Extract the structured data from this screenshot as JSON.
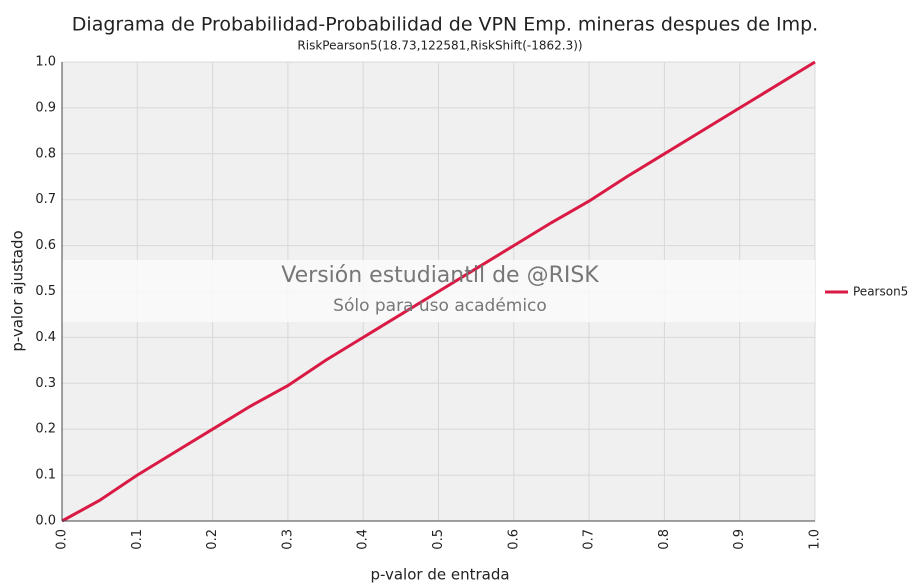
{
  "chart_data": {
    "type": "line",
    "title": "Diagrama de Probabilidad-Probabilidad de VPN Emp. mineras despues de Imp.",
    "subtitle": "RiskPearson5(18.73,122581,RiskShift(-1862.3))",
    "x_label": "p-valor de entrada",
    "y_label": "p-valor ajustado",
    "annotations": [
      "Versión estudiantil de @RISK",
      "Sólo para uso académico"
    ],
    "x": [
      0,
      0.05,
      0.1,
      0.15,
      0.2,
      0.25,
      0.3,
      0.35,
      0.4,
      0.45,
      0.5,
      0.55,
      0.6,
      0.65,
      0.7,
      0.75,
      0.8,
      0.85,
      0.9,
      0.95,
      1
    ],
    "series": [
      {
        "name": "Pearson5",
        "color": "#d91a44",
        "values": [
          0,
          0.045,
          0.1,
          0.15,
          0.2,
          0.25,
          0.295,
          0.35,
          0.4,
          0.45,
          0.5,
          0.55,
          0.6,
          0.65,
          0.697,
          0.75,
          0.8,
          0.85,
          0.9,
          0.95,
          1
        ]
      }
    ],
    "xlim": [
      0,
      1
    ],
    "ylim": [
      0,
      1
    ],
    "xticks": [
      {
        "value": 0,
        "label": "0.0"
      },
      0.1,
      0.2,
      0.3,
      0.4,
      0.5,
      0.6,
      0.7,
      0.8,
      0.9,
      {
        "value": 1,
        "label": "1.0"
      }
    ],
    "yticks": [
      {
        "value": 0,
        "label": "0.0"
      },
      0.1,
      0.2,
      0.3,
      0.4,
      0.5,
      0.6,
      0.7,
      0.8,
      0.9,
      {
        "value": 1,
        "label": "1.0"
      }
    ],
    "grid": true,
    "legend": "right"
  }
}
